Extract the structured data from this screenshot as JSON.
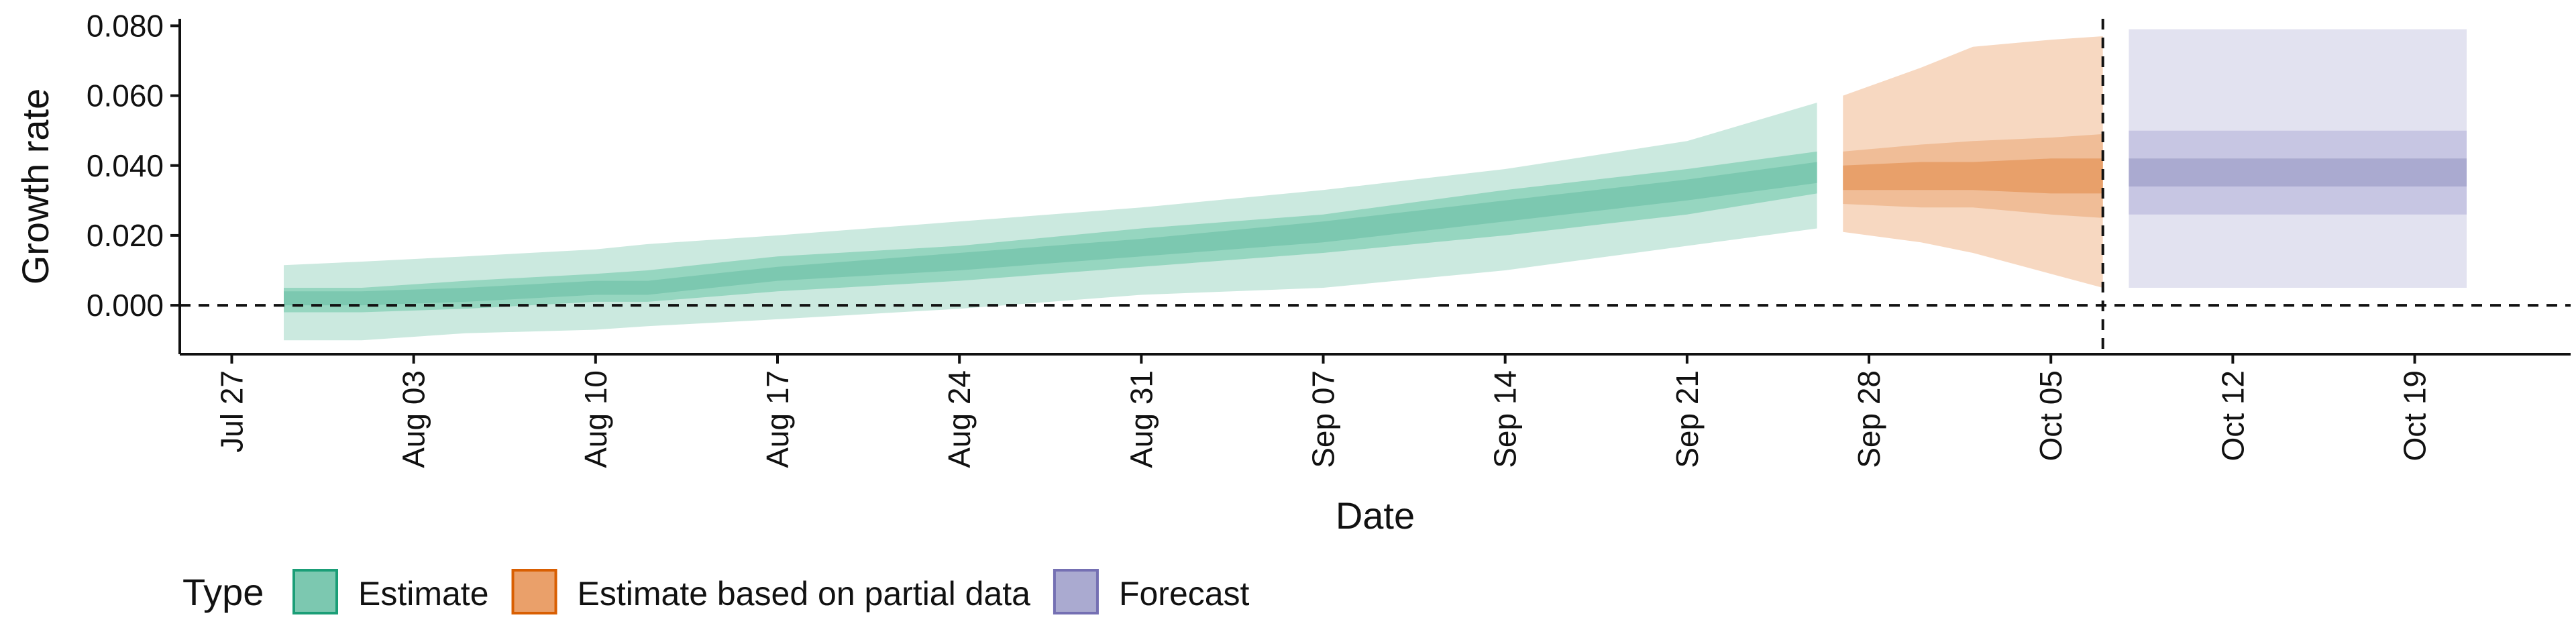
{
  "chart_data": {
    "type": "area",
    "xlabel": "Date",
    "ylabel": "Growth rate",
    "y_ticks": [
      "0.000",
      "0.020",
      "0.040",
      "0.060",
      "0.080"
    ],
    "ylim": [
      -0.014,
      0.082
    ],
    "x_ticks": [
      "Jul 27",
      "Aug 03",
      "Aug 10",
      "Aug 17",
      "Aug 24",
      "Aug 31",
      "Sep 07",
      "Sep 14",
      "Sep 21",
      "Sep 28",
      "Oct 05",
      "Oct 12",
      "Oct 19"
    ],
    "x_tick_dates": [
      "2020-07-27",
      "2020-08-03",
      "2020-08-10",
      "2020-08-17",
      "2020-08-24",
      "2020-08-31",
      "2020-09-07",
      "2020-09-14",
      "2020-09-21",
      "2020-09-28",
      "2020-10-05",
      "2020-10-12",
      "2020-10-19"
    ],
    "xlim": [
      "2020-07-25",
      "2020-10-25"
    ],
    "reference_lines": {
      "horizontal_y": 0.0,
      "vertical_date": "2020-10-07"
    },
    "grid": false,
    "legend": {
      "title": "Type",
      "position": "bottom",
      "items": [
        {
          "label": "Estimate",
          "fill": "#7cc8b0",
          "stroke": "#1b9e77"
        },
        {
          "label": "Estimate based on partial data",
          "fill": "#eaa06a",
          "stroke": "#d95f02"
        },
        {
          "label": "Forecast",
          "fill": "#aaaad0",
          "stroke": "#7570b3"
        }
      ]
    },
    "series": [
      {
        "name": "Estimate",
        "colors": {
          "outer": "#cbe9df",
          "middle": "#96d6c0",
          "inner": "#7cc8b0"
        },
        "points": [
          {
            "x": "2020-07-29",
            "lo90": -0.01,
            "lo50": -0.002,
            "lo20": 0.0,
            "hi20": 0.004,
            "hi50": 0.005,
            "hi90": 0.0115
          },
          {
            "x": "2020-08-01",
            "lo90": -0.01,
            "lo50": -0.002,
            "lo20": 0.0,
            "hi20": 0.004,
            "hi50": 0.005,
            "hi90": 0.0125
          },
          {
            "x": "2020-08-05",
            "lo90": -0.008,
            "lo50": -0.001,
            "lo20": 0.001,
            "hi20": 0.005,
            "hi50": 0.007,
            "hi90": 0.014
          },
          {
            "x": "2020-08-10",
            "lo90": -0.007,
            "lo50": 0.001,
            "lo20": 0.003,
            "hi20": 0.007,
            "hi50": 0.009,
            "hi90": 0.016
          },
          {
            "x": "2020-08-12",
            "lo90": -0.006,
            "lo50": 0.001,
            "lo20": 0.003,
            "hi20": 0.007,
            "hi50": 0.01,
            "hi90": 0.0175
          },
          {
            "x": "2020-08-17",
            "lo90": -0.004,
            "lo50": 0.004,
            "lo20": 0.007,
            "hi20": 0.011,
            "hi50": 0.014,
            "hi90": 0.02
          },
          {
            "x": "2020-08-24",
            "lo90": -0.001,
            "lo50": 0.007,
            "lo20": 0.01,
            "hi20": 0.015,
            "hi50": 0.017,
            "hi90": 0.024
          },
          {
            "x": "2020-08-31",
            "lo90": 0.003,
            "lo50": 0.011,
            "lo20": 0.014,
            "hi20": 0.019,
            "hi50": 0.022,
            "hi90": 0.028
          },
          {
            "x": "2020-09-07",
            "lo90": 0.005,
            "lo50": 0.015,
            "lo20": 0.018,
            "hi20": 0.024,
            "hi50": 0.026,
            "hi90": 0.033
          },
          {
            "x": "2020-09-14",
            "lo90": 0.01,
            "lo50": 0.02,
            "lo20": 0.024,
            "hi20": 0.03,
            "hi50": 0.033,
            "hi90": 0.039
          },
          {
            "x": "2020-09-21",
            "lo90": 0.017,
            "lo50": 0.026,
            "lo20": 0.03,
            "hi20": 0.036,
            "hi50": 0.039,
            "hi90": 0.047
          },
          {
            "x": "2020-09-26",
            "lo90": 0.022,
            "lo50": 0.032,
            "lo20": 0.035,
            "hi20": 0.041,
            "hi50": 0.044,
            "hi90": 0.058
          }
        ]
      },
      {
        "name": "Estimate based on partial data",
        "colors": {
          "outer": "#f7d8c1",
          "middle": "#f0bd97",
          "inner": "#e8a06a"
        },
        "points": [
          {
            "x": "2020-09-27",
            "lo90": 0.021,
            "lo50": 0.029,
            "lo20": 0.033,
            "hi20": 0.04,
            "hi50": 0.044,
            "hi90": 0.06
          },
          {
            "x": "2020-09-30",
            "lo90": 0.018,
            "lo50": 0.028,
            "lo20": 0.033,
            "hi20": 0.041,
            "hi50": 0.046,
            "hi90": 0.068
          },
          {
            "x": "2020-10-02",
            "lo90": 0.015,
            "lo50": 0.028,
            "lo20": 0.033,
            "hi20": 0.041,
            "hi50": 0.047,
            "hi90": 0.074
          },
          {
            "x": "2020-10-05",
            "lo90": 0.009,
            "lo50": 0.026,
            "lo20": 0.032,
            "hi20": 0.042,
            "hi50": 0.048,
            "hi90": 0.076
          },
          {
            "x": "2020-10-07",
            "lo90": 0.005,
            "lo50": 0.025,
            "lo20": 0.032,
            "hi20": 0.042,
            "hi50": 0.049,
            "hi90": 0.077
          }
        ]
      },
      {
        "name": "Forecast",
        "colors": {
          "outer": "#e2e2f0",
          "middle": "#c7c6e3",
          "inner": "#aaaad0"
        },
        "points": [
          {
            "x": "2020-10-08",
            "lo90": 0.005,
            "lo50": 0.026,
            "lo20": 0.034,
            "hi20": 0.042,
            "hi50": 0.05,
            "hi90": 0.079
          },
          {
            "x": "2020-10-21",
            "lo90": 0.005,
            "lo50": 0.026,
            "lo20": 0.034,
            "hi20": 0.042,
            "hi50": 0.05,
            "hi90": 0.079
          }
        ]
      }
    ]
  }
}
